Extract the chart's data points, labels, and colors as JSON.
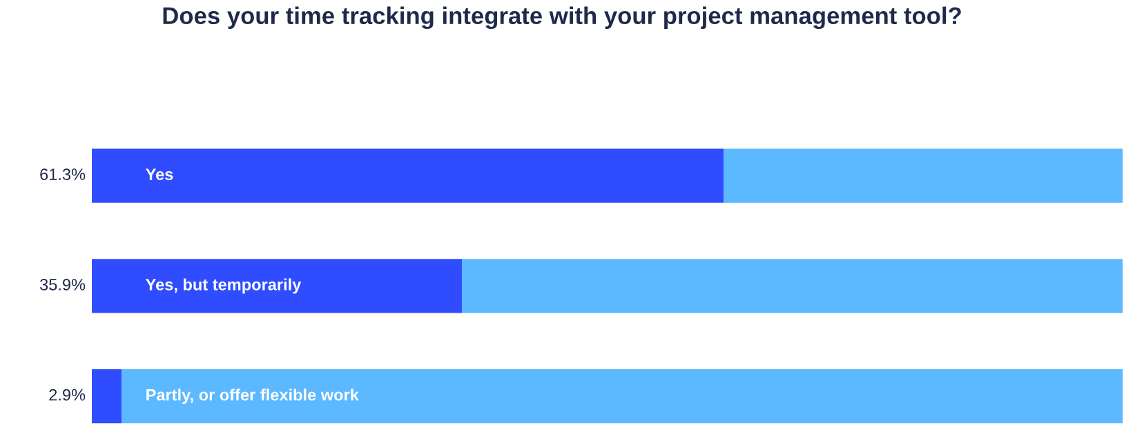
{
  "chart_data": {
    "type": "bar",
    "orientation": "horizontal",
    "stacked": true,
    "title": "Does your time tracking integrate with your project management tool?",
    "categories": [
      "Yes",
      "Yes, but temporarily",
      "Partly, or offer flexible work"
    ],
    "series": [
      {
        "color": "#2f4dff",
        "values": [
          61.3,
          35.9,
          2.9
        ],
        "value_labels": [
          "61.3%",
          "35.9%",
          "2.9%"
        ]
      },
      {
        "color": "#5cb8ff",
        "values": [
          38.7,
          64.1,
          97.1
        ]
      }
    ],
    "xlim": [
      0,
      100
    ]
  }
}
